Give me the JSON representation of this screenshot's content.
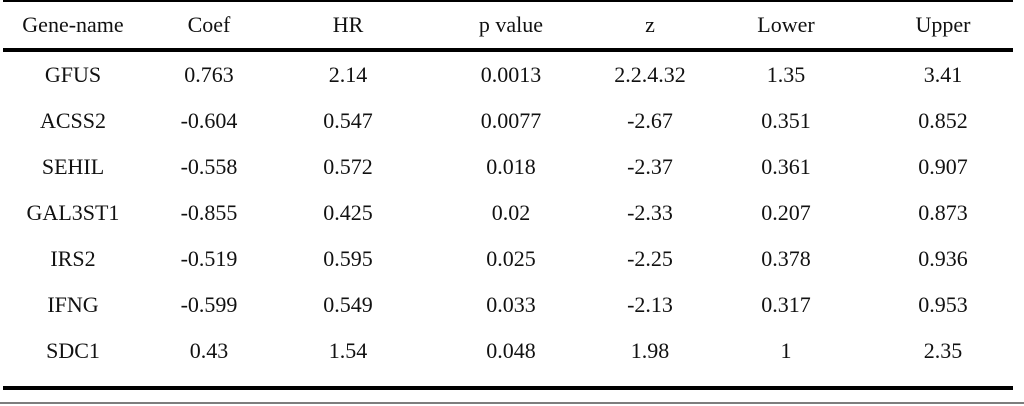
{
  "table": {
    "columns": [
      "Gene-name",
      "Coef",
      "HR",
      "p value",
      "z",
      "Lower",
      "Upper"
    ],
    "rows": [
      [
        "GFUS",
        "0.763",
        "2.14",
        "0.0013",
        "2.2.4.32",
        "1.35",
        "3.41"
      ],
      [
        "ACSS2",
        "-0.604",
        "0.547",
        "0.0077",
        "-2.67",
        "0.351",
        "0.852"
      ],
      [
        "SEHIL",
        "-0.558",
        "0.572",
        "0.018",
        "-2.37",
        "0.361",
        "0.907"
      ],
      [
        "GAL3ST1",
        "-0.855",
        "0.425",
        "0.02",
        "-2.33",
        "0.207",
        "0.873"
      ],
      [
        "IRS2",
        "-0.519",
        "0.595",
        "0.025",
        "-2.25",
        "0.378",
        "0.936"
      ],
      [
        "IFNG",
        "-0.599",
        "0.549",
        "0.033",
        "-2.13",
        "0.317",
        "0.953"
      ],
      [
        "SDC1",
        "0.43",
        "1.54",
        "0.048",
        "1.98",
        "1",
        "2.35"
      ]
    ],
    "colors": {
      "rule": "#000000",
      "text": "#111111",
      "background": "#ffffff",
      "footer_line": "#7d7d7d"
    }
  }
}
